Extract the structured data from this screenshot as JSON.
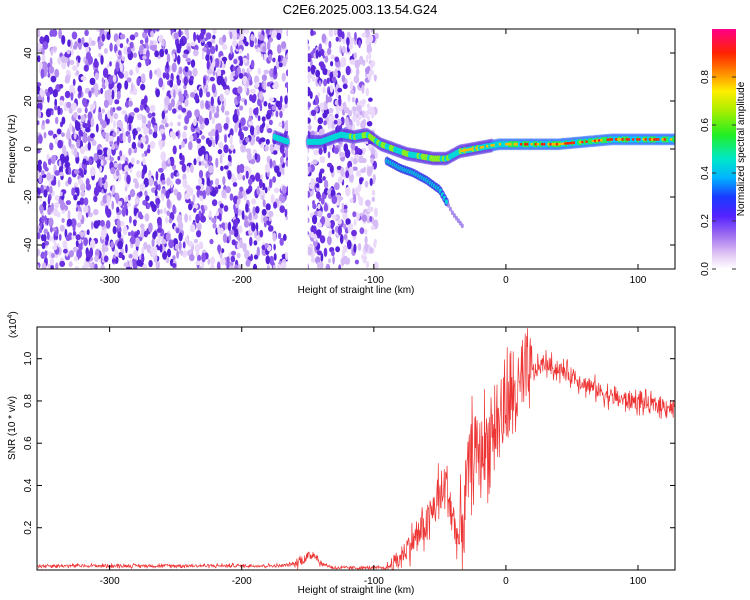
{
  "title": "C2E6.2025.003.13.54.G24",
  "chart_data": [
    {
      "type": "heatmap",
      "xlabel": "Height of straight line (km)",
      "ylabel": "Frequency (Hz)",
      "xlim": [
        -355,
        128
      ],
      "ylim": [
        -50,
        50
      ],
      "xticks": [
        -300,
        -200,
        -100,
        0,
        100
      ],
      "yticks": [
        -40,
        -20,
        0,
        20,
        40
      ],
      "noise_region_x": [
        -355,
        -98
      ],
      "gap_x": [
        -165,
        -150
      ],
      "ridge": [
        [
          -175,
          5
        ],
        [
          -165,
          3
        ],
        [
          -150,
          3
        ],
        [
          -140,
          3
        ],
        [
          -135,
          4
        ],
        [
          -125,
          6
        ],
        [
          -115,
          5
        ],
        [
          -105,
          6
        ],
        [
          -95,
          2
        ],
        [
          -85,
          0
        ],
        [
          -75,
          -2
        ],
        [
          -65,
          -3
        ],
        [
          -55,
          -4
        ],
        [
          -45,
          -4
        ],
        [
          -35,
          -1
        ],
        [
          -25,
          0
        ],
        [
          -15,
          1
        ],
        [
          -5,
          2
        ],
        [
          10,
          2
        ],
        [
          40,
          2
        ],
        [
          60,
          3
        ],
        [
          80,
          4
        ],
        [
          100,
          4
        ],
        [
          128,
          4
        ]
      ],
      "branch": [
        [
          -90,
          -5
        ],
        [
          -80,
          -8
        ],
        [
          -70,
          -10
        ],
        [
          -60,
          -13
        ],
        [
          -50,
          -17
        ],
        [
          -45,
          -22
        ],
        [
          -40,
          -27
        ],
        [
          -33,
          -32
        ]
      ],
      "colorbar": {
        "label": "Normalized spectral amplitude",
        "ticks": [
          0.0,
          0.2,
          0.4,
          0.6,
          0.8
        ],
        "range": [
          0,
          1
        ]
      },
      "grid": false
    },
    {
      "type": "line",
      "xlabel": "Height of straight line (km)",
      "ylabel": "SNR (10 * v/v)",
      "exponent_label": "(x10",
      "exponent_power": "4",
      "exponent_close": ")",
      "xlim": [
        -355,
        128
      ],
      "ylim": [
        0,
        1.15
      ],
      "xticks": [
        -300,
        -200,
        -100,
        0,
        100
      ],
      "yticks": [
        0.2,
        0.4,
        0.6,
        0.8,
        1.0
      ],
      "color": "#ee3333",
      "series": [
        {
          "x": [
            -355,
            -250,
            -170,
            -160,
            -150,
            -145,
            -140,
            -130,
            -110,
            -90,
            -80,
            -70,
            -60,
            -50,
            -45,
            -40,
            -35,
            -30,
            -25,
            -20,
            -15,
            -10,
            -5,
            0,
            10,
            20,
            25,
            30,
            35,
            40,
            50,
            60,
            70,
            80,
            90,
            100,
            110,
            120,
            128
          ],
          "y": [
            0.02,
            0.02,
            0.02,
            0.03,
            0.06,
            0.08,
            0.03,
            0.01,
            0.01,
            0.01,
            0.06,
            0.14,
            0.22,
            0.35,
            0.4,
            0.25,
            0.12,
            0.4,
            0.58,
            0.55,
            0.6,
            0.66,
            0.7,
            0.78,
            0.85,
            0.93,
            0.96,
            0.98,
            0.96,
            0.95,
            0.92,
            0.88,
            0.85,
            0.82,
            0.8,
            0.8,
            0.78,
            0.78,
            0.77
          ]
        }
      ],
      "grid": false
    }
  ]
}
